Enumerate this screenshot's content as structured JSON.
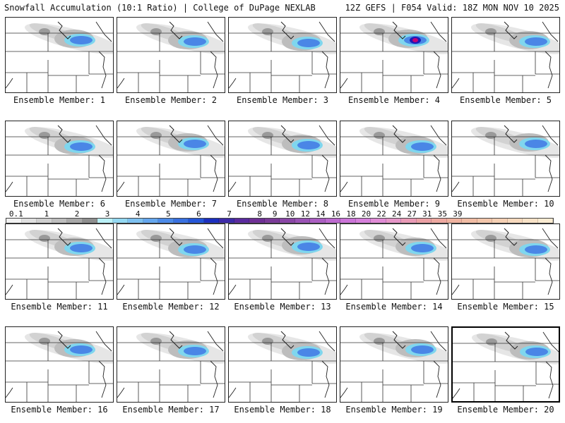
{
  "header": {
    "title": "Snowfall Accumulation (10:1 Ratio) | College of DuPage NEXLAB",
    "run_info": "12Z GEFS | F054 Valid: 18Z MON NOV 10 2025"
  },
  "members": [
    {
      "label": "Ensemble Member: 1"
    },
    {
      "label": "Ensemble Member: 2"
    },
    {
      "label": "Ensemble Member: 3"
    },
    {
      "label": "Ensemble Member: 4"
    },
    {
      "label": "Ensemble Member: 5"
    },
    {
      "label": "Ensemble Member: 6"
    },
    {
      "label": "Ensemble Member: 7"
    },
    {
      "label": "Ensemble Member: 8"
    },
    {
      "label": "Ensemble Member: 9"
    },
    {
      "label": "Ensemble Member: 10"
    },
    {
      "label": "Ensemble Member: 11"
    },
    {
      "label": "Ensemble Member: 12"
    },
    {
      "label": "Ensemble Member: 13"
    },
    {
      "label": "Ensemble Member: 14"
    },
    {
      "label": "Ensemble Member: 15"
    },
    {
      "label": "Ensemble Member: 16"
    },
    {
      "label": "Ensemble Member: 17"
    },
    {
      "label": "Ensemble Member: 18"
    },
    {
      "label": "Ensemble Member: 19"
    },
    {
      "label": "Ensemble Member: 20"
    }
  ],
  "legend": {
    "labels": [
      "0.1",
      "1",
      "2",
      "3",
      "4",
      "5",
      "6",
      "7",
      "8",
      "9",
      "10",
      "12",
      "14",
      "16",
      "18",
      "20",
      "22",
      "24",
      "27",
      "31",
      "35",
      "39"
    ],
    "colors": [
      "#f2f2f2",
      "#e0e0e0",
      "#cfcfcf",
      "#bdbdbd",
      "#a8a8a8",
      "#8e8e8e",
      "#b9f0f7",
      "#93d8f2",
      "#7cc0f0",
      "#64a6ee",
      "#4c8ae8",
      "#3870e0",
      "#2455d8",
      "#1b2fbf",
      "#3d2aa8",
      "#5a2a9e",
      "#6e2f95",
      "#7a3a98",
      "#8a46a6",
      "#9a52b5",
      "#ab5ec2",
      "#bc69cf",
      "#cb74d8",
      "#d67fdb",
      "#e08bd6",
      "#e696c8",
      "#e99ab6",
      "#eba0a4",
      "#eda8a0",
      "#efb29f",
      "#f1bca4",
      "#f3c6ab",
      "#f5d0b4",
      "#f7d9bd",
      "#f8e2c7",
      "#faebd2"
    ],
    "tick_slot": [
      0,
      2,
      4,
      6,
      8,
      10,
      12,
      14,
      16,
      17,
      18,
      19,
      20,
      21,
      22,
      23,
      24,
      25,
      26,
      27,
      28,
      29
    ]
  }
}
